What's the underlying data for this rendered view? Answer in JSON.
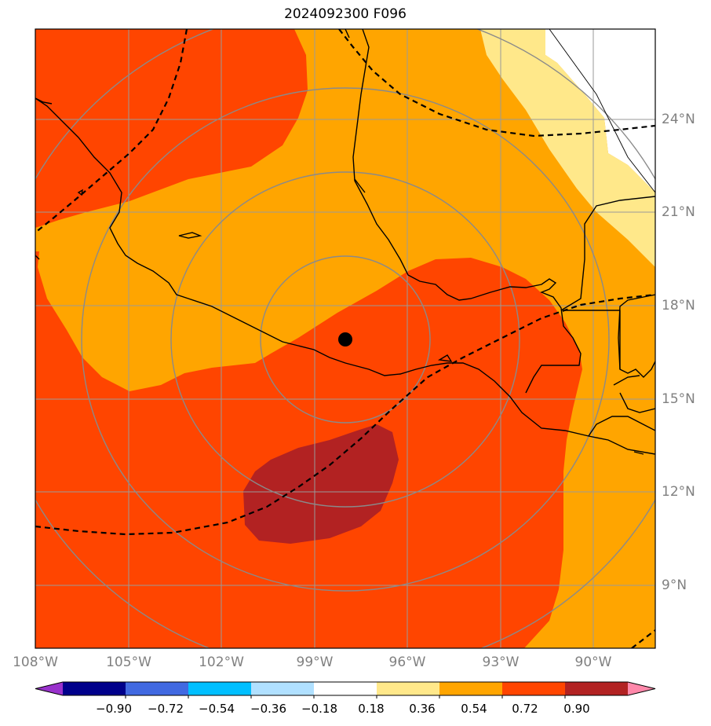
{
  "title": "2024092300 F096",
  "lon_labels": [
    "108°W",
    "105°W",
    "102°W",
    "99°W",
    "96°W",
    "93°W",
    "90°W"
  ],
  "lat_labels": [
    "24°N",
    "21°N",
    "18°N",
    "15°N",
    "12°N",
    "9°N"
  ],
  "colorbar": {
    "ticks": [
      "−0.90",
      "−0.72",
      "−0.54",
      "−0.36",
      "−0.18",
      "0.18",
      "0.36",
      "0.54",
      "0.72",
      "0.90"
    ],
    "colors": [
      "#9932cc",
      "#00008b",
      "#4169e1",
      "#00bfff",
      "#b0e0ff",
      "#ffffff",
      "#ffe88a",
      "#ffa500",
      "#ff4500",
      "#b22222",
      "#ff88aa"
    ]
  },
  "map": {
    "extent": {
      "lon_min": -108,
      "lon_max": -88,
      "lat_min": 7,
      "lat_max": 27
    },
    "center_marker": {
      "lon": -98.0,
      "lat": 16.9
    },
    "field_colors": {
      "c036": "#ffe88a",
      "c054": "#ffa500",
      "c072": "#ff4500",
      "c090": "#b22222"
    }
  }
}
